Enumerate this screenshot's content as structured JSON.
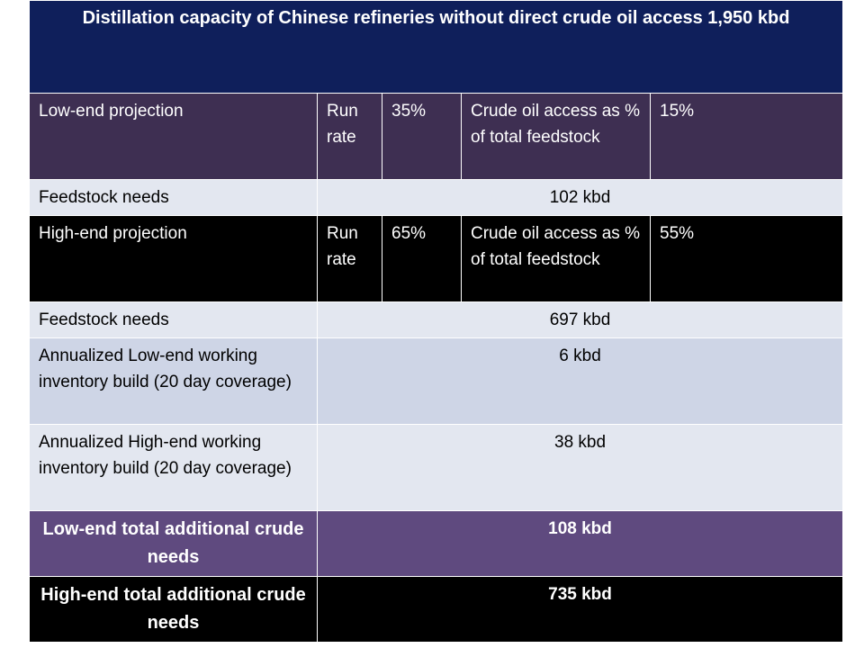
{
  "title": "Distillation capacity of Chinese refineries without direct crude oil access 1,950 kbd",
  "low_projection": {
    "label": "Low-end projection",
    "run_rate_label": "Run rate",
    "run_rate_value": "35%",
    "access_label": "Crude oil access as % of total feedstock",
    "access_value": "15%"
  },
  "low_feedstock": {
    "label": "Feedstock needs",
    "value": "102 kbd"
  },
  "high_projection": {
    "label": "High-end projection",
    "run_rate_label": "Run rate",
    "run_rate_value": "65%",
    "access_label": "Crude oil access as % of total feedstock",
    "access_value": "55%"
  },
  "high_feedstock": {
    "label": "Feedstock needs",
    "value": "697 kbd"
  },
  "low_inventory": {
    "label": "Annualized Low-end working inventory build (20 day coverage)",
    "value": "6 kbd"
  },
  "high_inventory": {
    "label": "Annualized High-end working inventory build (20 day coverage)",
    "value": "38 kbd"
  },
  "low_total": {
    "label": "Low-end total additional crude needs",
    "value": "108 kbd"
  },
  "high_total": {
    "label": "High-end total additional crude needs",
    "value": "735 kbd"
  }
}
